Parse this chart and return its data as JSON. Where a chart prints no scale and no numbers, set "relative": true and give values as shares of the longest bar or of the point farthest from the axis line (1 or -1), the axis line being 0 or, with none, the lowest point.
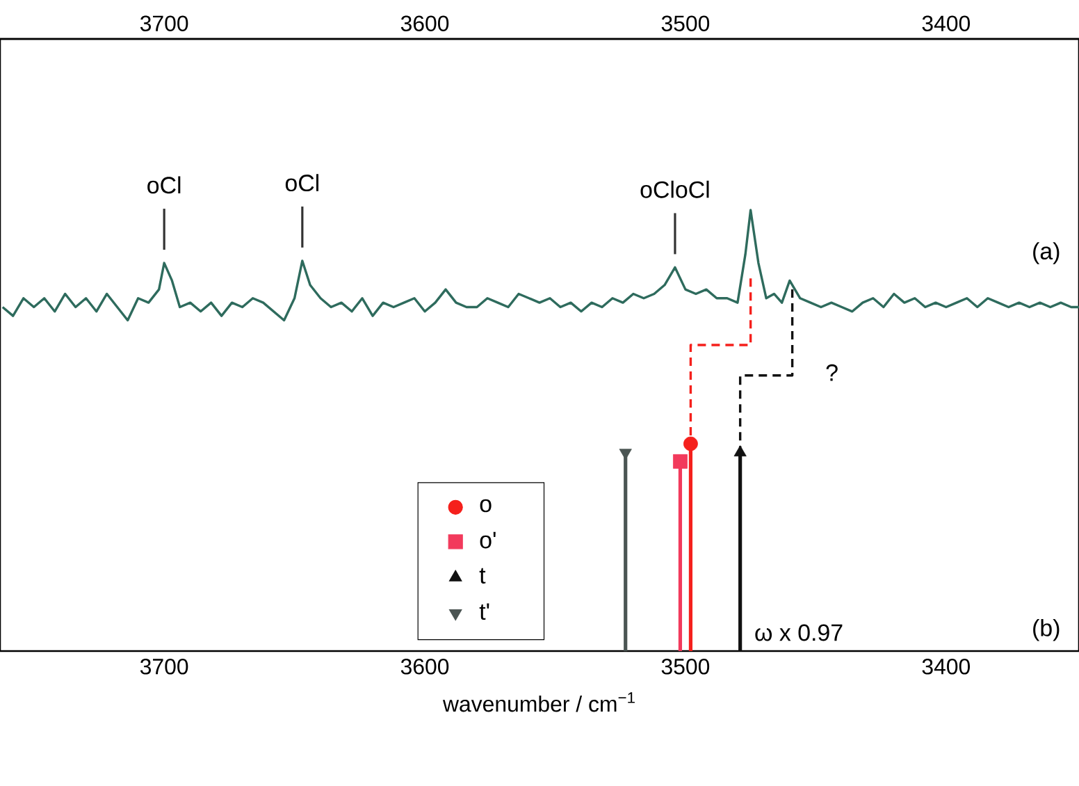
{
  "chart_data": {
    "type": "lollipop",
    "relative": true,
    "xlabel": "wavenumber / cm$^{−1}$",
    "xlim": [
      3763,
      3349
    ],
    "xticks": [
      3700,
      3600,
      3500,
      3400
    ],
    "x2lim": [
      3763,
      3349
    ],
    "x2ticks": [
      3700,
      3600,
      3500,
      3400
    ],
    "tick_labels": "x",
    "legend": "bottom",
    "series": [
      {
        "type": "line",
        "color": "#2e6b5d",
        "x": [
          3762,
          3758,
          3754,
          3750,
          3746,
          3742,
          3738,
          3734,
          3730,
          3726,
          3722,
          3718,
          3714,
          3710,
          3706,
          3702,
          3700,
          3697,
          3694,
          3690,
          3686,
          3682,
          3678,
          3674,
          3670,
          3666,
          3662,
          3658,
          3654,
          3650,
          3647,
          3644,
          3640,
          3636,
          3632,
          3628,
          3624,
          3620,
          3616,
          3612,
          3608,
          3604,
          3600,
          3596,
          3592,
          3588,
          3584,
          3580,
          3576,
          3572,
          3568,
          3564,
          3560,
          3556,
          3552,
          3548,
          3544,
          3540,
          3536,
          3532,
          3528,
          3524,
          3520,
          3516,
          3512,
          3508,
          3504,
          3500,
          3496,
          3492,
          3488,
          3484,
          3480,
          3477,
          3475,
          3472,
          3469,
          3466,
          3463,
          3460,
          3456,
          3452,
          3448,
          3444,
          3440,
          3436,
          3432,
          3428,
          3424,
          3420,
          3416,
          3412,
          3408,
          3404,
          3400,
          3396,
          3392,
          3388,
          3384,
          3380,
          3376,
          3372,
          3368,
          3364,
          3360,
          3356,
          3352,
          3349
        ],
        "values": [
          0.78,
          0.76,
          0.8,
          0.78,
          0.8,
          0.77,
          0.81,
          0.78,
          0.8,
          0.77,
          0.81,
          0.78,
          0.75,
          0.8,
          0.79,
          0.82,
          0.88,
          0.84,
          0.78,
          0.79,
          0.77,
          0.79,
          0.76,
          0.79,
          0.78,
          0.8,
          0.79,
          0.77,
          0.75,
          0.8,
          0.885,
          0.83,
          0.8,
          0.78,
          0.79,
          0.77,
          0.8,
          0.76,
          0.79,
          0.78,
          0.79,
          0.8,
          0.77,
          0.79,
          0.82,
          0.79,
          0.78,
          0.78,
          0.8,
          0.79,
          0.78,
          0.81,
          0.8,
          0.79,
          0.8,
          0.78,
          0.79,
          0.77,
          0.79,
          0.78,
          0.8,
          0.79,
          0.81,
          0.8,
          0.81,
          0.83,
          0.87,
          0.82,
          0.81,
          0.82,
          0.8,
          0.8,
          0.79,
          0.9,
          1.0,
          0.88,
          0.8,
          0.81,
          0.79,
          0.84,
          0.8,
          0.79,
          0.78,
          0.79,
          0.78,
          0.77,
          0.79,
          0.8,
          0.78,
          0.81,
          0.79,
          0.8,
          0.78,
          0.79,
          0.78,
          0.79,
          0.8,
          0.78,
          0.8,
          0.79,
          0.78,
          0.79,
          0.78,
          0.79,
          0.78,
          0.79,
          0.78,
          0.78
        ]
      },
      {
        "type": "line",
        "line_style": "dashed",
        "color": "#f5201c",
        "x": [
          3475,
          3475,
          3498,
          3498
        ],
        "values": [
          0.845,
          0.694,
          0.694,
          0.47
        ]
      },
      {
        "type": "line",
        "line_style": "dashed",
        "color": "#111111",
        "x": [
          3459,
          3459,
          3479,
          3479
        ],
        "values": [
          0.82,
          0.625,
          0.625,
          0.45
        ]
      },
      {
        "name": "o",
        "marker": "circle",
        "color": "#f5201c",
        "x": [
          3498
        ],
        "values": [
          0.47
        ]
      },
      {
        "name": "o'",
        "marker": "square",
        "color": "#f23a5c",
        "x": [
          3502
        ],
        "values": [
          0.43
        ]
      },
      {
        "name": "t",
        "marker": "triangle",
        "color": "#111111",
        "x": [
          3479
        ],
        "values": [
          0.45
        ]
      },
      {
        "name": "t'",
        "marker": "triangle_down",
        "color": "#4b5553",
        "x": [
          3523
        ],
        "values": [
          0.45
        ]
      }
    ],
    "annotations": [
      {
        "text": "oCl",
        "x": 3700,
        "y": 0.88
      },
      {
        "text": "oCl",
        "x": 3647,
        "y": 0.885
      },
      {
        "text": "oCloCl",
        "x": 3504,
        "y": 0.87
      },
      "(a)",
      "(b)",
      "?",
      "ω x 0.97"
    ]
  }
}
